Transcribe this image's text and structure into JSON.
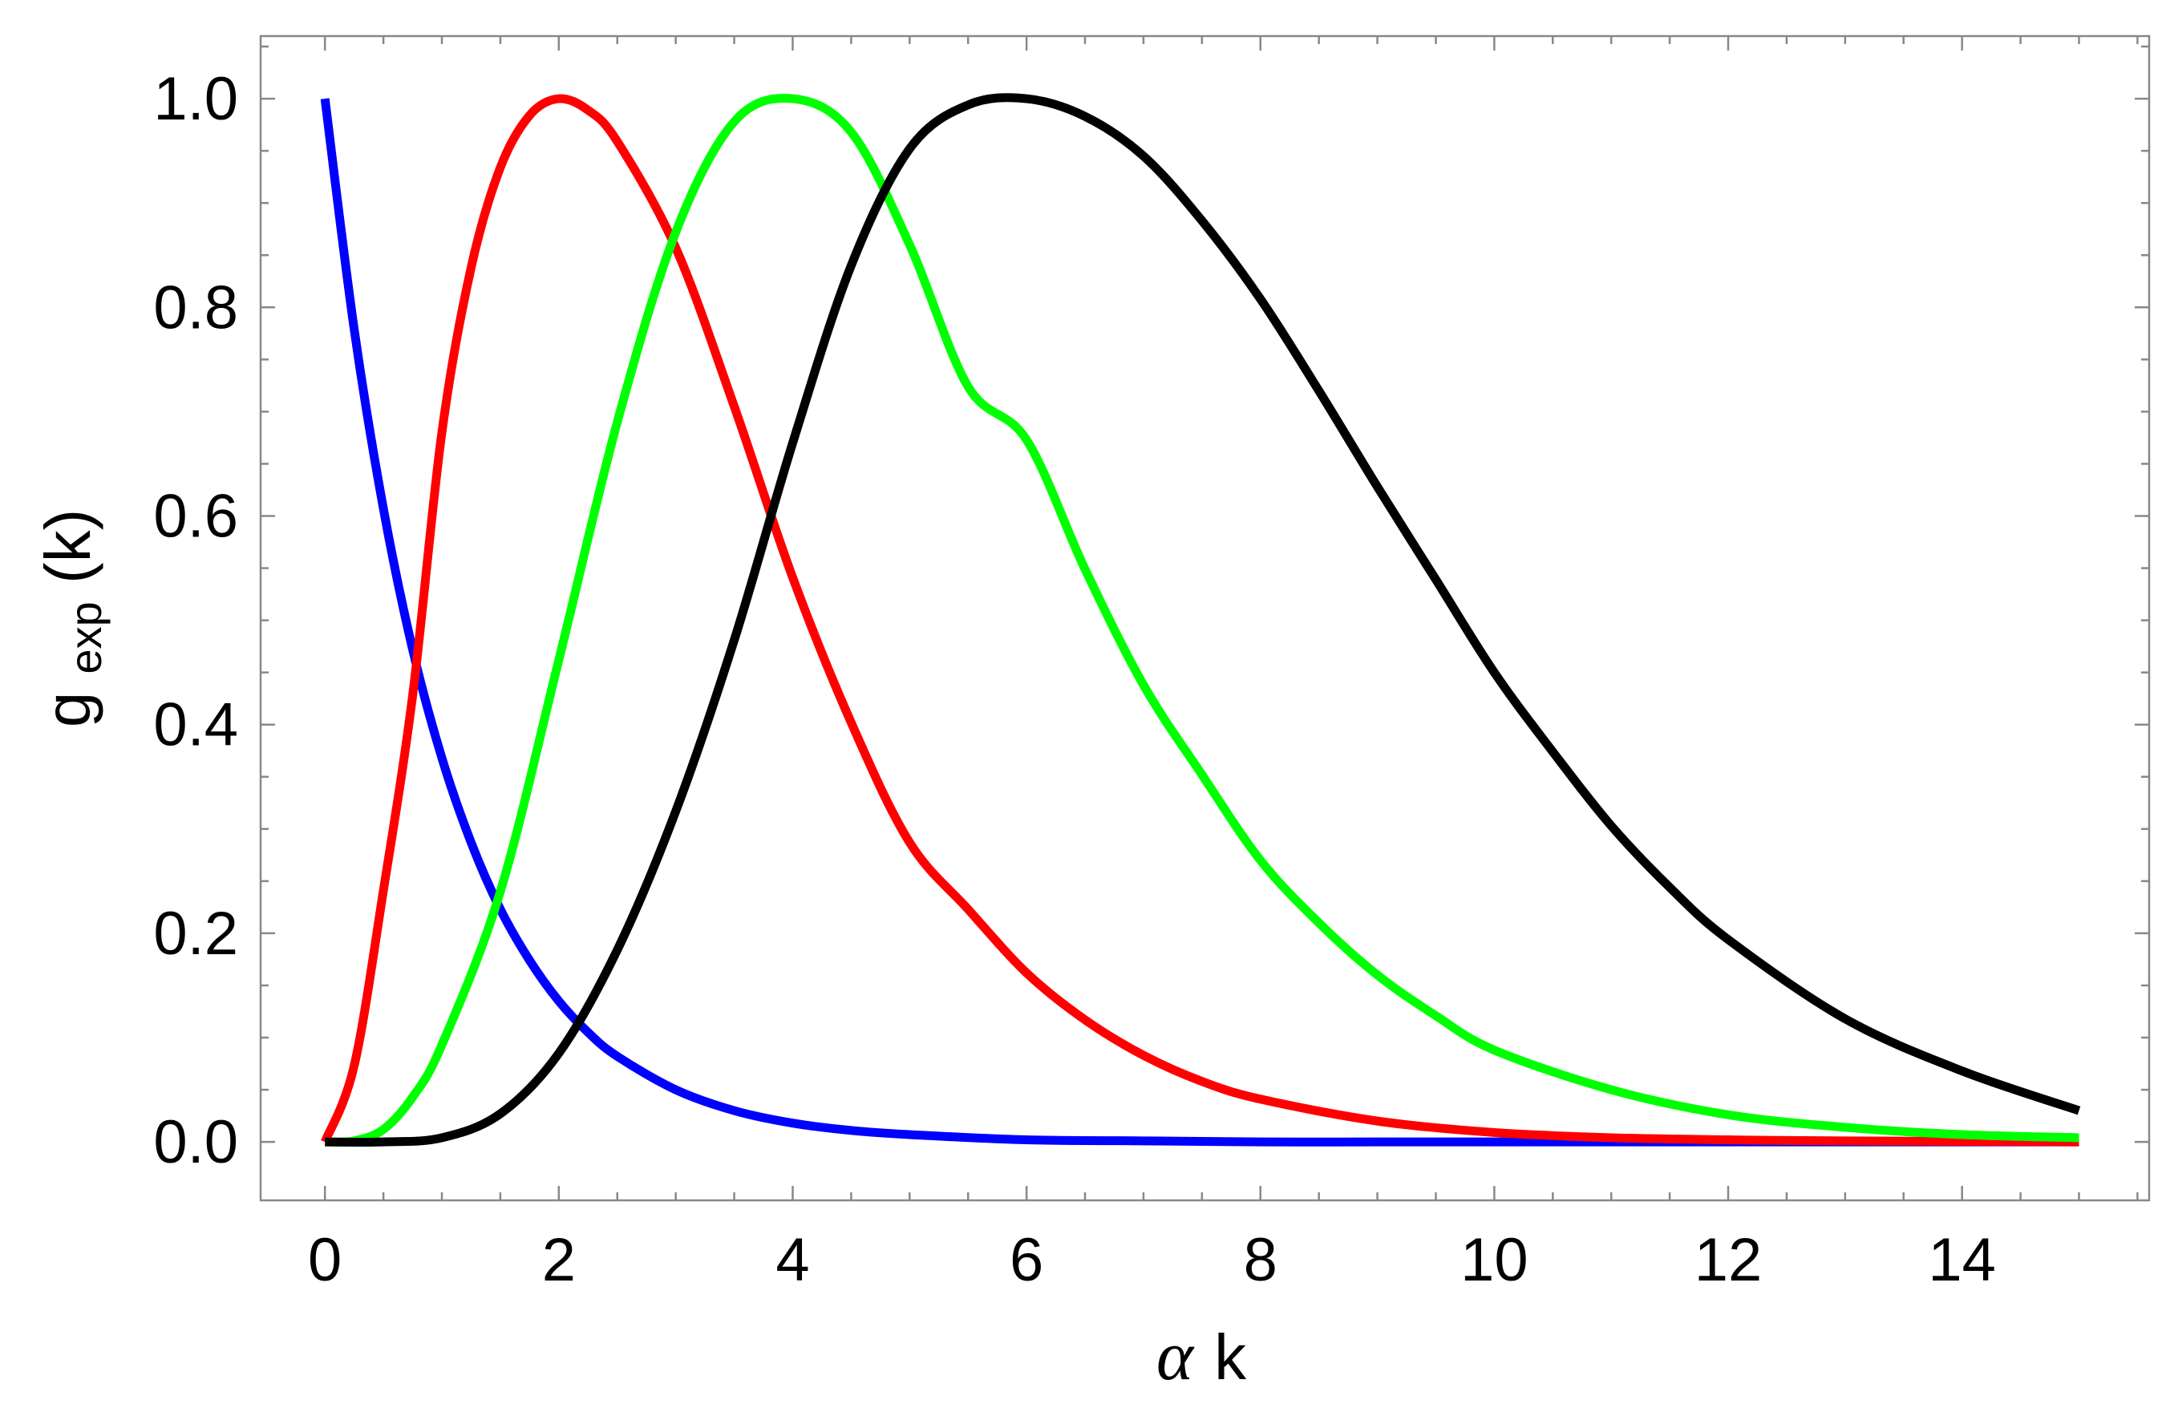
{
  "chart_data": {
    "type": "line",
    "title": "",
    "xlabel": {
      "symbol": "α",
      "variable": "k"
    },
    "ylabel": {
      "base": "g",
      "subscript": "exp",
      "argument": "(k)"
    },
    "xlim": [
      -0.55,
      15.6
    ],
    "ylim": [
      -0.056,
      1.06
    ],
    "x_ticks": [
      {
        "value": 0,
        "label": "0"
      },
      {
        "value": 2,
        "label": "2"
      },
      {
        "value": 4,
        "label": "4"
      },
      {
        "value": 6,
        "label": "6"
      },
      {
        "value": 8,
        "label": "8"
      },
      {
        "value": 10,
        "label": "10"
      },
      {
        "value": 12,
        "label": "12"
      },
      {
        "value": 14,
        "label": "14"
      }
    ],
    "y_ticks": [
      {
        "value": 0.0,
        "label": "0.0"
      },
      {
        "value": 0.2,
        "label": "0.2"
      },
      {
        "value": 0.4,
        "label": "0.4"
      },
      {
        "value": 0.6,
        "label": "0.6"
      },
      {
        "value": 0.8,
        "label": "0.8"
      },
      {
        "value": 1.0,
        "label": "1.0"
      }
    ],
    "x_minor_step": 0.5,
    "y_minor_step": 0.05,
    "grid": false,
    "legend": "none",
    "series": [
      {
        "color": "#0000ff",
        "x": [
          0,
          0.25,
          0.5,
          0.75,
          1,
          1.25,
          1.5,
          1.75,
          2,
          2.25,
          2.5,
          3,
          3.5,
          4,
          4.5,
          5,
          6,
          7,
          8,
          9,
          10,
          12,
          15
        ],
        "y": [
          1.0,
          0.779,
          0.607,
          0.472,
          0.368,
          0.287,
          0.223,
          0.174,
          0.135,
          0.105,
          0.082,
          0.05,
          0.03,
          0.018,
          0.011,
          0.007,
          0.002,
          0.001,
          0.0,
          0.0,
          0.0,
          0.0,
          0.0
        ]
      },
      {
        "color": "#ff0000",
        "x": [
          0,
          0.25,
          0.5,
          0.75,
          1,
          1.25,
          1.5,
          1.75,
          2,
          2.25,
          2.5,
          3,
          3.5,
          4,
          4.5,
          5,
          5.5,
          6,
          6.5,
          7,
          7.5,
          8,
          9,
          10,
          11,
          12,
          13,
          15
        ],
        "y": [
          0.0,
          0.073,
          0.241,
          0.428,
          0.68,
          0.838,
          0.934,
          0.984,
          1.0,
          0.989,
          0.959,
          0.857,
          0.705,
          0.541,
          0.402,
          0.287,
          0.223,
          0.162,
          0.117,
          0.083,
          0.058,
          0.041,
          0.02,
          0.009,
          0.004,
          0.002,
          0.001,
          0.0
        ]
      },
      {
        "color": "#00ff00",
        "x": [
          0,
          0.25,
          0.5,
          0.75,
          1,
          1.5,
          2,
          2.5,
          3,
          3.5,
          4,
          4.5,
          5,
          5.5,
          6,
          6.5,
          7,
          7.5,
          8,
          8.5,
          9,
          9.5,
          10,
          11,
          12,
          13,
          14,
          15
        ],
        "y": [
          0.0,
          0.001,
          0.012,
          0.043,
          0.093,
          0.24,
          0.462,
          0.69,
          0.872,
          0.978,
          1.0,
          0.968,
          0.86,
          0.724,
          0.673,
          0.549,
          0.438,
          0.352,
          0.27,
          0.21,
          0.16,
          0.121,
          0.088,
          0.05,
          0.026,
          0.014,
          0.007,
          0.004
        ]
      },
      {
        "color": "#000000",
        "x": [
          0,
          0.5,
          1,
          1.5,
          2,
          2.5,
          3,
          3.5,
          4,
          4.5,
          5,
          5.5,
          6,
          6.5,
          7,
          7.5,
          8,
          8.5,
          9,
          9.5,
          10,
          10.5,
          11,
          11.5,
          12,
          13,
          14,
          15
        ],
        "y": [
          0.0,
          0.0,
          0.004,
          0.027,
          0.085,
          0.184,
          0.317,
          0.481,
          0.67,
          0.84,
          0.952,
          0.994,
          1.0,
          0.983,
          0.945,
          0.883,
          0.808,
          0.72,
          0.628,
          0.539,
          0.45,
          0.374,
          0.303,
          0.244,
          0.194,
          0.118,
          0.068,
          0.03
        ]
      }
    ]
  }
}
